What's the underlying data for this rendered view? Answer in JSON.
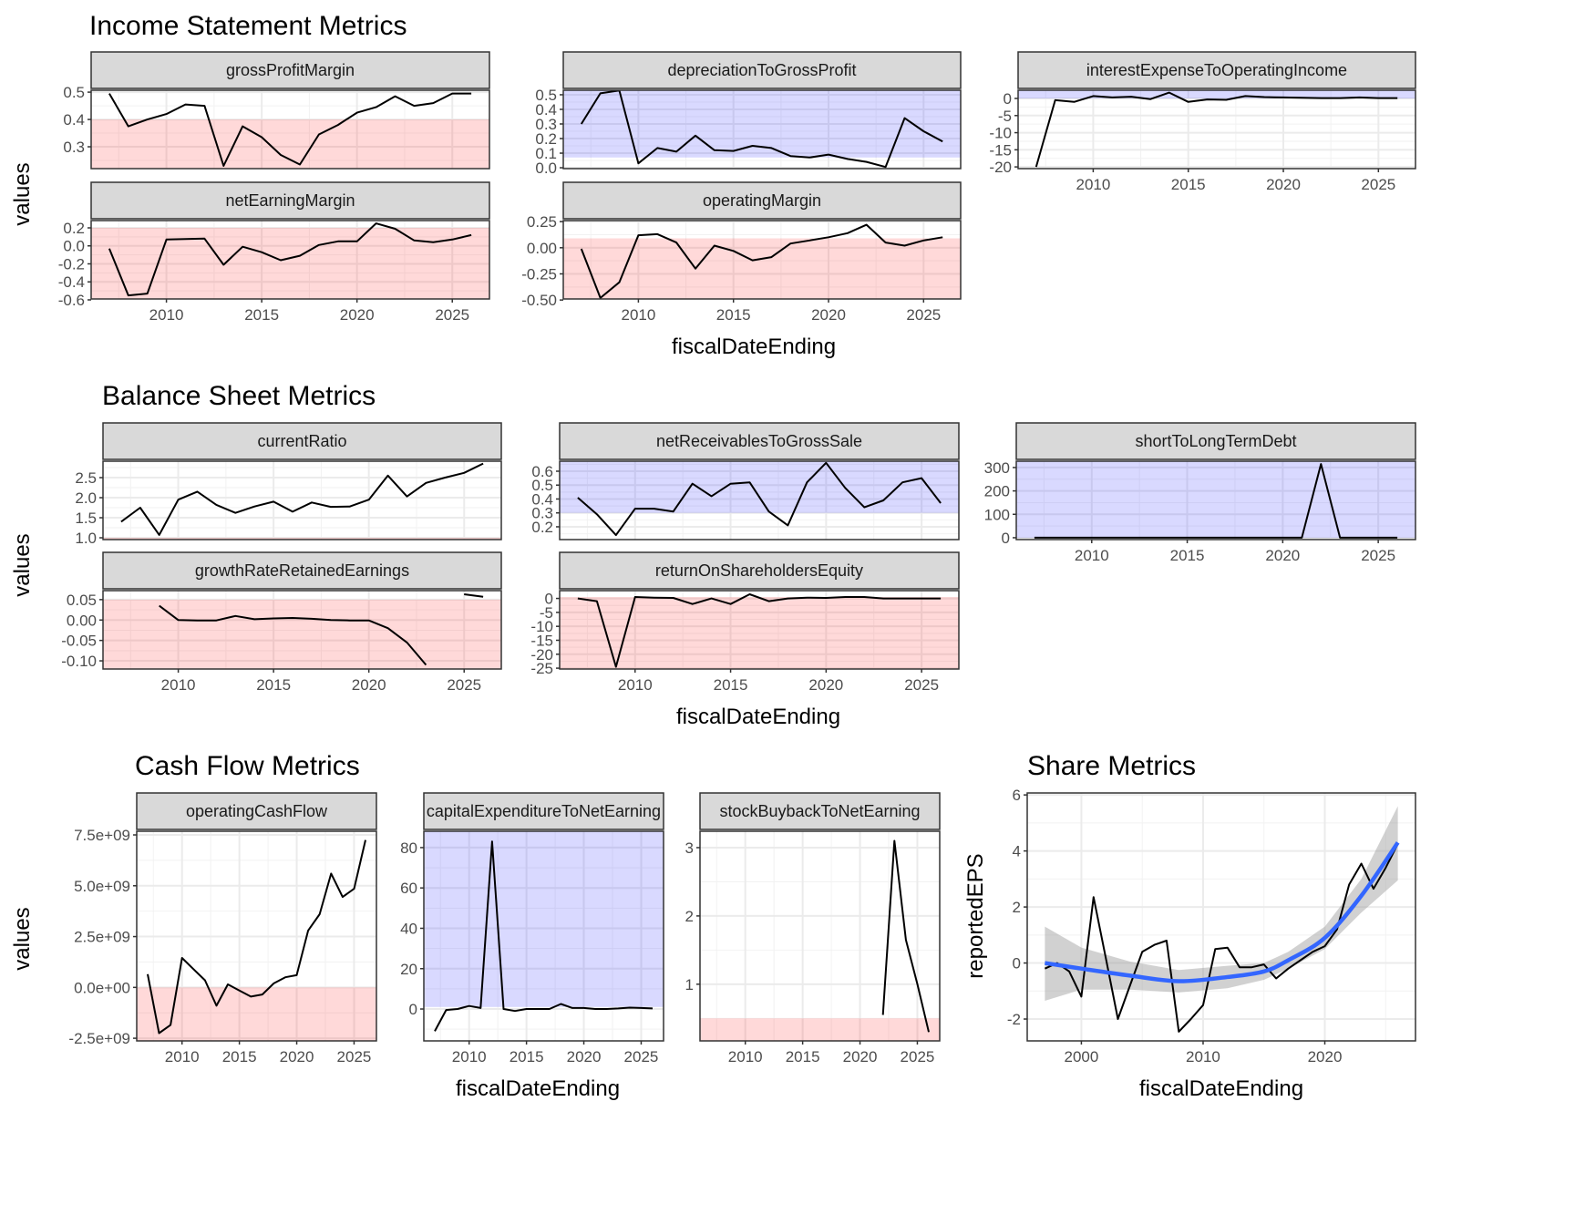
{
  "chart_data": {
    "type": "line",
    "sections": [
      {
        "id": "income",
        "title": "Income Statement Metrics",
        "xlabel": "fiscalDateEnding",
        "ylabel": "values"
      },
      {
        "id": "balance",
        "title": "Balance Sheet Metrics",
        "xlabel": "fiscalDateEnding",
        "ylabel": "values"
      },
      {
        "id": "cashflow",
        "title": "Cash Flow Metrics",
        "xlabel": "fiscalDateEnding",
        "ylabel": "values"
      },
      {
        "id": "share",
        "title": "Share Metrics",
        "xlabel": "fiscalDateEnding",
        "ylabel": "reportedEPS"
      }
    ],
    "panels": [
      {
        "id": "grossProfitMargin",
        "strip": "grossProfitMargin",
        "x_start": 2007,
        "xlim": [
          2006.05,
          2026.95
        ],
        "ylim": [
          0.22,
          0.507
        ],
        "xticks": [
          2010,
          2015,
          2020,
          2025
        ],
        "yticks": [
          0.3,
          0.4,
          0.5
        ],
        "ytick_labels": [
          "0.3",
          "0.4",
          "0.5"
        ],
        "band": {
          "color": "#FF0000",
          "from": 0.22,
          "to": 0.4
        },
        "values": [
          0.495,
          0.375,
          0.4,
          0.42,
          0.455,
          0.45,
          0.23,
          0.375,
          0.335,
          0.27,
          0.235,
          0.345,
          0.38,
          0.425,
          0.445,
          0.485,
          0.45,
          0.46,
          0.495,
          0.495
        ]
      },
      {
        "id": "depreciationToGrossProfit",
        "strip": "depreciationToGrossProfit",
        "x_start": 2007,
        "xlim": [
          2006.05,
          2026.95
        ],
        "ylim": [
          -0.006,
          0.531
        ],
        "xticks": [
          2010,
          2015,
          2020,
          2025
        ],
        "yticks": [
          0,
          0.1,
          0.2,
          0.3,
          0.4,
          0.5
        ],
        "ytick_labels": [
          "0.0",
          "0.1",
          "0.2",
          "0.3",
          "0.4",
          "0.5"
        ],
        "band": {
          "color": "#0000FF",
          "from": 0.07,
          "to": 0.531
        },
        "values": [
          0.3,
          0.51,
          0.53,
          0.03,
          0.135,
          0.11,
          0.22,
          0.12,
          0.115,
          0.15,
          0.135,
          0.08,
          0.07,
          0.09,
          0.06,
          0.04,
          0.005,
          0.34,
          0.25,
          0.18
        ]
      },
      {
        "id": "interestExpenseToOperatingIncome",
        "strip": "interestExpenseToOperatingIncome",
        "x_start": 2007,
        "xlim": [
          2006.05,
          2026.95
        ],
        "ylim": [
          -20.5,
          2.4
        ],
        "xticks": [
          2010,
          2015,
          2020,
          2025
        ],
        "yticks": [
          -20,
          -15,
          -10,
          -5,
          0
        ],
        "ytick_labels": [
          "-20",
          "-15",
          "-10",
          "-5",
          "0"
        ],
        "band": {
          "color": "#0000FF",
          "from": 0,
          "to": 2.4
        },
        "values": [
          -20,
          -0.5,
          -1,
          0.7,
          0.3,
          0.5,
          -0.2,
          1.7,
          -1,
          -0.3,
          -0.4,
          0.7,
          0.4,
          0.3,
          0.2,
          0.1,
          0.1,
          0.3,
          0.1,
          0.1
        ]
      },
      {
        "id": "netEarningMargin",
        "strip": "netEarningMargin",
        "x_start": 2007,
        "xlim": [
          2006.05,
          2026.95
        ],
        "ylim": [
          -0.59,
          0.281
        ],
        "xticks": [
          2010,
          2015,
          2020,
          2025
        ],
        "yticks": [
          -0.6,
          -0.4,
          -0.2,
          0,
          0.2
        ],
        "ytick_labels": [
          "-0.6",
          "-0.4",
          "-0.2",
          "0.0",
          "0.2"
        ],
        "band": {
          "color": "#FF0000",
          "from": -0.59,
          "to": 0.2
        },
        "values": [
          -0.03,
          -0.55,
          -0.53,
          0.07,
          0.075,
          0.08,
          -0.21,
          -0.01,
          -0.07,
          -0.16,
          -0.11,
          0.01,
          0.05,
          0.05,
          0.25,
          0.19,
          0.06,
          0.04,
          0.07,
          0.12
        ]
      },
      {
        "id": "operatingMargin",
        "strip": "operatingMargin",
        "x_start": 2007,
        "xlim": [
          2006.05,
          2026.95
        ],
        "ylim": [
          -0.49,
          0.26
        ],
        "xticks": [
          2010,
          2015,
          2020,
          2025
        ],
        "yticks": [
          -0.5,
          -0.25,
          0,
          0.25
        ],
        "ytick_labels": [
          "-0.50",
          "-0.25",
          "0.00",
          "0.25"
        ],
        "band": {
          "color": "#FF0000",
          "from": -0.49,
          "to": 0.09
        },
        "values": [
          -0.01,
          -0.48,
          -0.33,
          0.12,
          0.13,
          0.05,
          -0.2,
          0.02,
          -0.03,
          -0.12,
          -0.09,
          0.04,
          0.07,
          0.1,
          0.14,
          0.22,
          0.05,
          0.02,
          0.07,
          0.1
        ]
      },
      {
        "id": "currentRatio",
        "strip": "currentRatio",
        "x_start": 2007,
        "xlim": [
          2006.05,
          2026.95
        ],
        "ylim": [
          0.955,
          2.91
        ],
        "xticks": [
          2010,
          2015,
          2020,
          2025
        ],
        "yticks": [
          1,
          1.5,
          2,
          2.5
        ],
        "ytick_labels": [
          "1.0",
          "1.5",
          "2.0",
          "2.5"
        ],
        "band": {
          "color": "#FF0000",
          "from": 0.955,
          "to": 1.0
        },
        "values": [
          1.4,
          1.75,
          1.07,
          1.95,
          2.15,
          1.82,
          1.62,
          1.78,
          1.9,
          1.65,
          1.88,
          1.77,
          1.78,
          1.95,
          2.55,
          2.03,
          2.37,
          2.5,
          2.62,
          2.85
        ]
      },
      {
        "id": "netReceivablesToGrossSale",
        "strip": "netReceivablesToGrossSale",
        "x_start": 2007,
        "xlim": [
          2006.05,
          2026.95
        ],
        "ylim": [
          0.108,
          0.672
        ],
        "xticks": [
          2010,
          2015,
          2020,
          2025
        ],
        "yticks": [
          0.2,
          0.3,
          0.4,
          0.5,
          0.6
        ],
        "ytick_labels": [
          "0.2",
          "0.3",
          "0.4",
          "0.5",
          "0.6"
        ],
        "band": {
          "color": "#0000FF",
          "from": 0.3,
          "to": 0.672
        },
        "values": [
          0.41,
          0.29,
          0.14,
          0.33,
          0.33,
          0.31,
          0.51,
          0.42,
          0.51,
          0.52,
          0.31,
          0.21,
          0.52,
          0.66,
          0.48,
          0.34,
          0.39,
          0.52,
          0.55,
          0.37
        ]
      },
      {
        "id": "shortToLongTermDebt",
        "strip": "shortToLongTermDebt",
        "x_start": 2007,
        "xlim": [
          2006.05,
          2026.95
        ],
        "ylim": [
          -8,
          327
        ],
        "xticks": [
          2010,
          2015,
          2020,
          2025
        ],
        "yticks": [
          0,
          100,
          200,
          300
        ],
        "ytick_labels": [
          "0",
          "100",
          "200",
          "300"
        ],
        "band": {
          "color": "#0000FF",
          "from": 0,
          "to": 327
        },
        "values": [
          0,
          0,
          0,
          0,
          0,
          0,
          0,
          0,
          0,
          0,
          0,
          0,
          0,
          0,
          0,
          315,
          0,
          0,
          0,
          0
        ]
      },
      {
        "id": "growthRateRetainedEarnings",
        "strip": "growthRateRetainedEarnings",
        "x_start": 2007,
        "xlim": [
          2006.05,
          2026.95
        ],
        "ylim": [
          -0.12,
          0.072
        ],
        "xticks": [
          2010,
          2015,
          2020,
          2025
        ],
        "yticks": [
          -0.1,
          -0.05,
          0,
          0.05
        ],
        "ytick_labels": [
          "-0.10",
          "-0.05",
          "0.00",
          "0.05"
        ],
        "band": {
          "color": "#FF0000",
          "from": -0.12,
          "to": 0.05
        },
        "values": [
          null,
          null,
          0.035,
          0,
          -0.001,
          -0.001,
          0.01,
          0.002,
          0.004,
          0.005,
          0.003,
          0,
          -0.001,
          -0.001,
          -0.02,
          -0.055,
          -0.11,
          null,
          0.063,
          0.057
        ]
      },
      {
        "id": "returnOnShareholdersEquity",
        "strip": "returnOnShareholdersEquity",
        "x_start": 2007,
        "xlim": [
          2006.05,
          2026.95
        ],
        "ylim": [
          -25.3,
          2.8
        ],
        "xticks": [
          2010,
          2015,
          2020,
          2025
        ],
        "yticks": [
          -25,
          -20,
          -15,
          -10,
          -5,
          0
        ],
        "ytick_labels": [
          "-25",
          "-20",
          "-15",
          "-10",
          "-5",
          "0"
        ],
        "band": {
          "color": "#FF0000",
          "from": -25.3,
          "to": 0.5
        },
        "values": [
          0,
          -1,
          -24.5,
          0.5,
          0.3,
          0.2,
          -2,
          0,
          -2,
          1.5,
          -1,
          0,
          0.3,
          0.2,
          0.5,
          0.5,
          0,
          0,
          0,
          0
        ]
      },
      {
        "id": "operatingCashFlow",
        "strip": "operatingCashFlow",
        "x_start": 2007,
        "xlim": [
          2006.05,
          2026.95
        ],
        "ylim": [
          -2630000000.0,
          7680000000.0
        ],
        "xticks": [
          2010,
          2015,
          2020,
          2025
        ],
        "yticks": [
          -2500000000.0,
          0,
          2500000000.0,
          5000000000.0,
          7500000000.0
        ],
        "ytick_labels": [
          "-2.5e+09",
          "0.0e+00",
          "2.5e+09",
          "5.0e+09",
          "7.5e+09"
        ],
        "band": {
          "color": "#FF0000",
          "from": -2630000000.0,
          "to": 0
        },
        "values": [
          650000000.0,
          -2250000000.0,
          -1850000000.0,
          1450000000.0,
          900000000.0,
          350000000.0,
          -900000000.0,
          150000000.0,
          -150000000.0,
          -450000000.0,
          -350000000.0,
          200000000.0,
          500000000.0,
          600000000.0,
          2800000000.0,
          3600000000.0,
          5600000000.0,
          4450000000.0,
          4850000000.0,
          7250000000.0
        ]
      },
      {
        "id": "capitalExpenditureToNetEarning",
        "strip": "capitalExpenditureToNetEarning",
        "x_start": 2007,
        "xlim": [
          2006.05,
          2026.95
        ],
        "ylim": [
          -15.8,
          88.1
        ],
        "xticks": [
          2010,
          2015,
          2020,
          2025
        ],
        "yticks": [
          0,
          20,
          40,
          60,
          80
        ],
        "ytick_labels": [
          "0",
          "20",
          "40",
          "60",
          "80"
        ],
        "band": {
          "color": "#0000FF",
          "from": 1,
          "to": 88.1
        },
        "values": [
          -11,
          -0.5,
          0,
          1.5,
          0.5,
          83,
          0,
          -1,
          0,
          0,
          0,
          2.5,
          0.5,
          0.5,
          0,
          0,
          0.3,
          0.7,
          0.5,
          0.3
        ]
      },
      {
        "id": "stockBuybackToNetEarning",
        "strip": "stockBuybackToNetEarning",
        "x_start": 2007,
        "xlim": [
          2006.05,
          2026.95
        ],
        "ylim": [
          0.17,
          3.24
        ],
        "xticks": [
          2010,
          2015,
          2020,
          2025
        ],
        "yticks": [
          1,
          2,
          3
        ],
        "ytick_labels": [
          "1",
          "2",
          "3"
        ],
        "band": {
          "color": "#FF0000",
          "from": 0.17,
          "to": 0.5
        },
        "values": [
          null,
          null,
          null,
          null,
          null,
          null,
          null,
          null,
          null,
          null,
          null,
          null,
          null,
          null,
          null,
          0.55,
          3.1,
          1.65,
          1.0,
          0.3
        ]
      },
      {
        "id": "reportedEPS",
        "strip": null,
        "x_start": 1997,
        "xlim": [
          1995.55,
          2027.45
        ],
        "ylim": [
          -2.78,
          6.07
        ],
        "xticks": [
          2000,
          2010,
          2020
        ],
        "yticks": [
          -2,
          0,
          2,
          4,
          6
        ],
        "ytick_labels": [
          "-2",
          "0",
          "2",
          "4",
          "6"
        ],
        "band": null,
        "values": [
          -0.2,
          0,
          -0.3,
          -1.2,
          2.35,
          0.2,
          -2.0,
          -0.8,
          0.4,
          0.65,
          0.8,
          -2.45,
          -2.0,
          -1.5,
          0.5,
          0.55,
          -0.15,
          -0.15,
          -0.05,
          -0.55,
          -0.2,
          0.1,
          0.4,
          0.6,
          1.2,
          2.8,
          3.55,
          2.65,
          3.4,
          4.25
        ],
        "smooth": {
          "color": "#3366FF",
          "x": [
            1997,
            2000,
            2004,
            2008,
            2012,
            2015,
            2017,
            2020,
            2023,
            2026
          ],
          "fit": [
            0,
            -0.2,
            -0.45,
            -0.65,
            -0.5,
            -0.3,
            0.1,
            0.9,
            2.4,
            4.3
          ],
          "lower": [
            -1.35,
            -0.95,
            -0.95,
            -1.05,
            -0.9,
            -0.6,
            -0.2,
            0.5,
            1.8,
            2.95
          ],
          "upper": [
            1.3,
            0.55,
            0.05,
            -0.25,
            -0.1,
            0,
            0.4,
            1.3,
            3.0,
            5.6
          ]
        }
      }
    ]
  }
}
